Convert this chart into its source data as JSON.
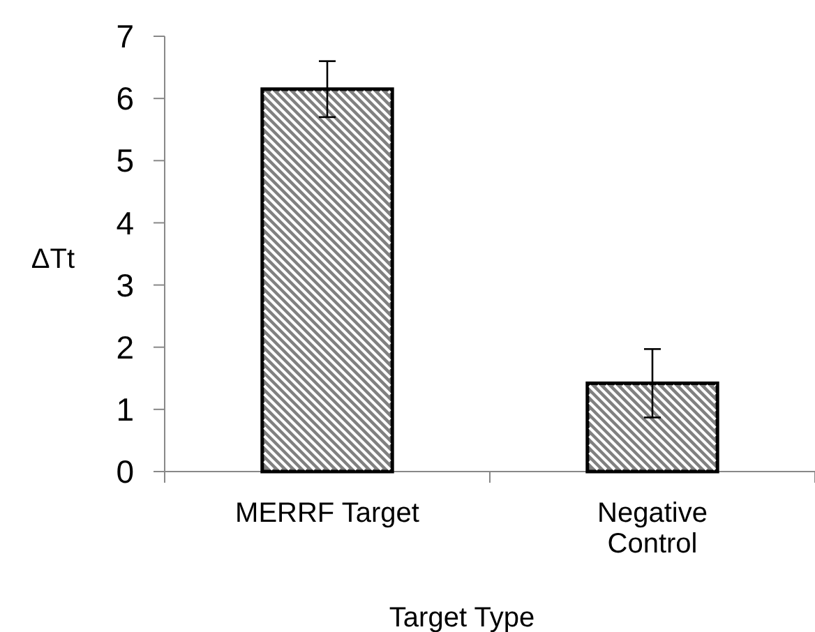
{
  "chart_data": {
    "type": "bar",
    "xlabel": "Target Type",
    "ylabel": "ΔTt",
    "categories": [
      "MERRF Target",
      "Negative\nControl"
    ],
    "values": [
      6.15,
      1.42
    ],
    "errors": [
      0.45,
      0.55
    ],
    "color": "#808080",
    "ylim": [
      0,
      7
    ],
    "yticks": [
      0,
      1,
      2,
      3,
      4,
      5,
      6,
      7
    ],
    "grid": false
  }
}
